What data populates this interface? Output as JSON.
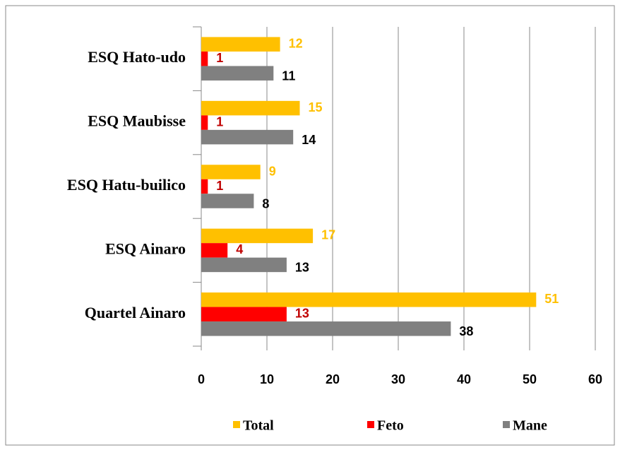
{
  "chart_data": {
    "type": "bar",
    "orientation": "horizontal",
    "categories": [
      "ESQ Hato-udo",
      "ESQ Maubisse",
      "ESQ Hatu-builico",
      "ESQ Ainaro",
      "Quartel Ainaro"
    ],
    "series": [
      {
        "name": "Total",
        "color": "#FFC000",
        "label_color": "#FFC000",
        "values": [
          12,
          15,
          9,
          17,
          51
        ]
      },
      {
        "name": "Feto",
        "color": "#FF0000",
        "label_color": "#C00000",
        "values": [
          1,
          1,
          1,
          4,
          13
        ]
      },
      {
        "name": "Mane",
        "color": "#808080",
        "label_color": "#000000",
        "values": [
          11,
          14,
          8,
          13,
          38
        ]
      }
    ],
    "xlim": [
      0,
      60
    ],
    "xticks": [
      0,
      10,
      20,
      30,
      40,
      50,
      60
    ],
    "grid": true,
    "legend": "bottom"
  }
}
